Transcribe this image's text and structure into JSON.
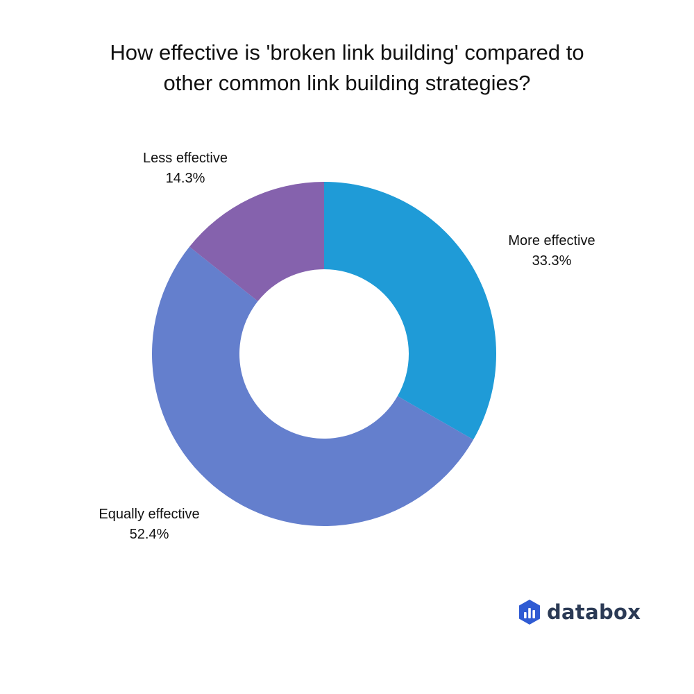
{
  "title_lines": [
    "How effective is 'broken link building' compared to",
    "other common link building strategies?"
  ],
  "chart_data": {
    "type": "pie",
    "subtype": "donut",
    "title": "How effective is 'broken link building' compared to other common link building strategies?",
    "categories": [
      "More effective",
      "Equally effective",
      "Less effective"
    ],
    "values": [
      33.3,
      52.4,
      14.3
    ],
    "value_labels": [
      "33.3%",
      "52.4%",
      "14.3%"
    ],
    "colors": [
      "#1f9bd7",
      "#647fcd",
      "#8562ad"
    ],
    "legend": "none",
    "data_labels": "outside"
  },
  "brand": {
    "name": "databox",
    "icon": "databox-logo-icon",
    "icon_color": "#2f5bd3"
  }
}
